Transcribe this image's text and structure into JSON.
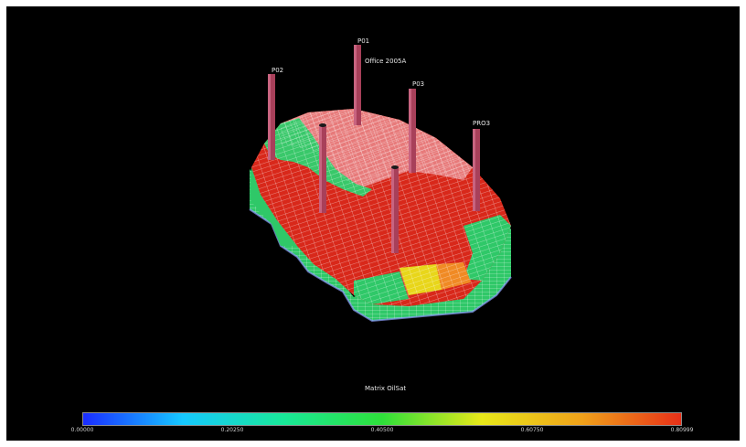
{
  "title": "Office 2005A",
  "property_label": "Matrix OilSat",
  "wells": [
    {
      "name": "P01"
    },
    {
      "name": "P02"
    },
    {
      "name": "P03"
    },
    {
      "name": "PRO3"
    },
    {
      "name": ""
    },
    {
      "name": ""
    }
  ],
  "colorbar": {
    "min": 0.0,
    "max": 0.80999,
    "ticks": [
      "0.00000",
      "0.20250",
      "0.40500",
      "0.60750",
      "0.80999"
    ],
    "gradient": [
      "#1a2cff",
      "#16c8ff",
      "#18e89a",
      "#2ee03a",
      "#e8e81a",
      "#f0a21a",
      "#e83018"
    ]
  },
  "colors": {
    "background": "#000000",
    "grid_line": "#ffffff",
    "well": "#a8405a",
    "oil_high": "#d82a1a",
    "oil_mid": "#2fd06a",
    "oil_low": "#e07878"
  }
}
